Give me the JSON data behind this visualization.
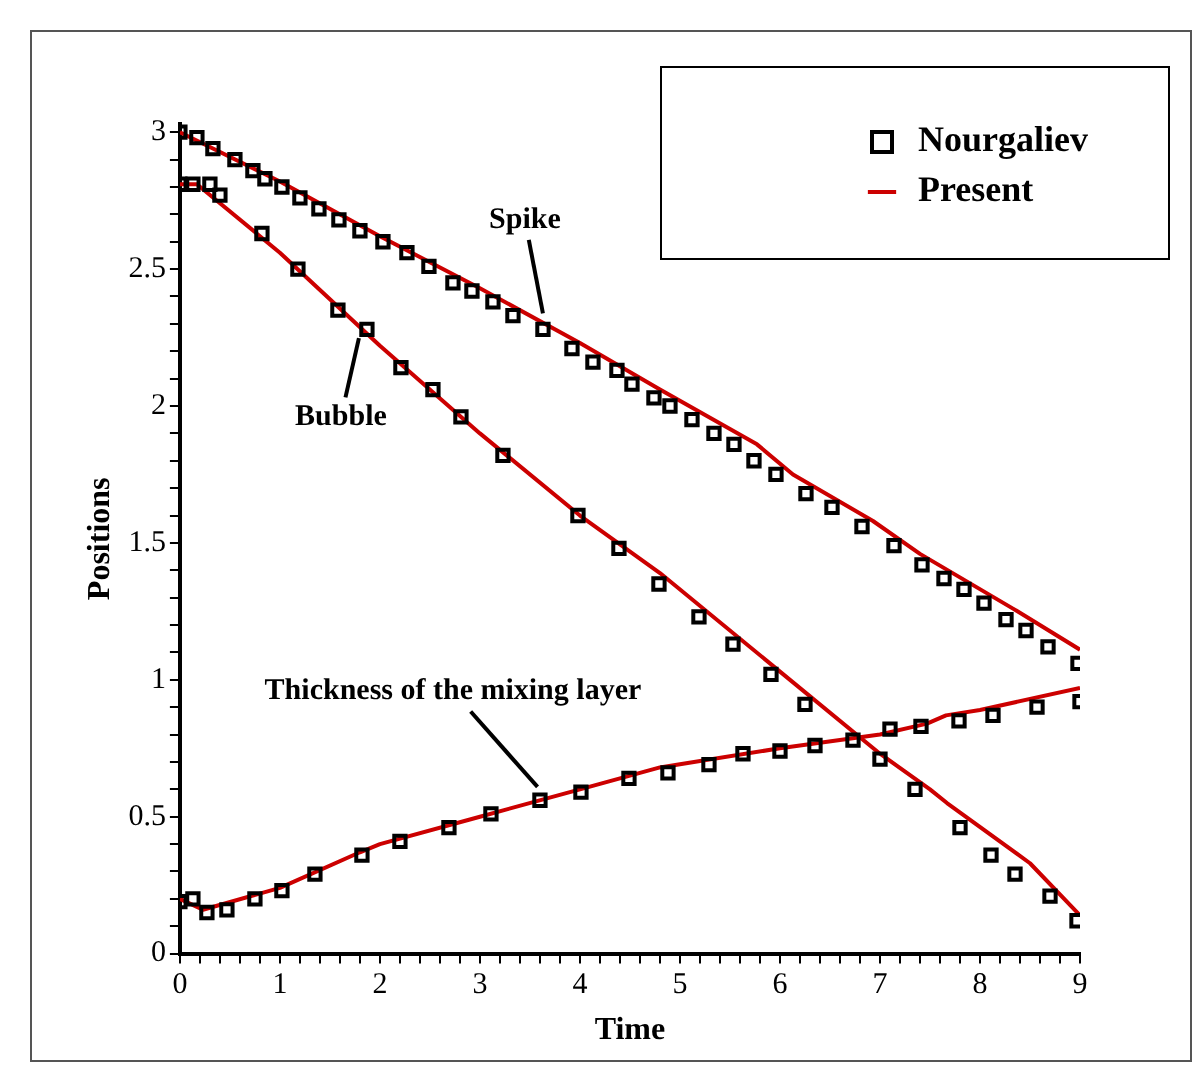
{
  "chart_data": {
    "type": "line",
    "xlabel": "Time",
    "ylabel": "Positions",
    "xlim": [
      0,
      9
    ],
    "ylim": [
      0,
      3.03
    ],
    "xticks": [
      0,
      {
        "value": 0.2,
        "label": null
      },
      {
        "value": 0.4,
        "label": null
      },
      {
        "value": 0.6,
        "label": null
      },
      {
        "value": 0.8,
        "label": null
      },
      1,
      {
        "value": 1.2,
        "label": null
      },
      {
        "value": 1.4,
        "label": null
      },
      {
        "value": 1.6,
        "label": null
      },
      {
        "value": 1.8,
        "label": null
      },
      2,
      {
        "value": 2.2,
        "label": null
      },
      {
        "value": 2.4,
        "label": null
      },
      {
        "value": 2.6,
        "label": null
      },
      {
        "value": 2.8,
        "label": null
      },
      3,
      {
        "value": 3.2,
        "label": null
      },
      {
        "value": 3.4,
        "label": null
      },
      {
        "value": 3.6,
        "label": null
      },
      {
        "value": 3.8,
        "label": null
      },
      4,
      {
        "value": 4.2,
        "label": null
      },
      {
        "value": 4.4,
        "label": null
      },
      {
        "value": 4.6,
        "label": null
      },
      {
        "value": 4.8,
        "label": null
      },
      5,
      {
        "value": 5.2,
        "label": null
      },
      {
        "value": 5.4,
        "label": null
      },
      {
        "value": 5.6,
        "label": null
      },
      {
        "value": 5.8,
        "label": null
      },
      6,
      {
        "value": 6.2,
        "label": null
      },
      {
        "value": 6.4,
        "label": null
      },
      {
        "value": 6.6,
        "label": null
      },
      {
        "value": 6.8,
        "label": null
      },
      7,
      {
        "value": 7.2,
        "label": null
      },
      {
        "value": 7.4,
        "label": null
      },
      {
        "value": 7.6,
        "label": null
      },
      {
        "value": 7.8,
        "label": null
      },
      8,
      {
        "value": 8.2,
        "label": null
      },
      {
        "value": 8.4,
        "label": null
      },
      {
        "value": 8.6,
        "label": null
      },
      {
        "value": 8.8,
        "label": null
      },
      9
    ],
    "yticks": [
      0,
      {
        "value": 0.1,
        "label": null
      },
      {
        "value": 0.2,
        "label": null
      },
      {
        "value": 0.3,
        "label": null
      },
      {
        "value": 0.4,
        "label": null
      },
      0.5,
      {
        "value": 0.6,
        "label": null
      },
      {
        "value": 0.7,
        "label": null
      },
      {
        "value": 0.8,
        "label": null
      },
      {
        "value": 0.9,
        "label": null
      },
      1,
      {
        "value": 1.1,
        "label": null
      },
      {
        "value": 1.2,
        "label": null
      },
      {
        "value": 1.3,
        "label": null
      },
      {
        "value": 1.4,
        "label": null
      },
      1.5,
      {
        "value": 1.6,
        "label": null
      },
      {
        "value": 1.7,
        "label": null
      },
      {
        "value": 1.8,
        "label": null
      },
      {
        "value": 1.9,
        "label": null
      },
      2,
      {
        "value": 2.1,
        "label": null
      },
      {
        "value": 2.2,
        "label": null
      },
      {
        "value": 2.3,
        "label": null
      },
      {
        "value": 2.4,
        "label": null
      },
      2.5,
      {
        "value": 2.6,
        "label": null
      },
      {
        "value": 2.7,
        "label": null
      },
      {
        "value": 2.8,
        "label": null
      },
      {
        "value": 2.9,
        "label": null
      },
      3
    ],
    "grid": false,
    "legend": "top right",
    "annotations": [
      {
        "text": "Spike",
        "x": 3.65,
        "y": 2.3
      },
      {
        "text": "Bubble",
        "x": 1.81,
        "y": 2.28
      },
      {
        "text": "Thickness of the mixing layer",
        "x": 3.67,
        "y": 0.57
      }
    ],
    "series": [
      {
        "name": "Nourgaliev",
        "type": "scatter",
        "marker": "square",
        "color": "#000000",
        "x": [
          0,
          0.17,
          0.33,
          0.55,
          0.73,
          0.85,
          1.02,
          1.2,
          1.39,
          1.59,
          1.8,
          2.03,
          2.27,
          2.49,
          2.73,
          2.92,
          3.13,
          3.33,
          3.63,
          3.92,
          4.13,
          4.37,
          4.52,
          4.74,
          4.9,
          5.12,
          5.34,
          5.54,
          5.74,
          5.96,
          6.26,
          6.52,
          6.82,
          7.14,
          7.42,
          7.64,
          7.84,
          8.04,
          8.26,
          8.46,
          8.68,
          8.98,
          0,
          0.13,
          0.3,
          0.4,
          0.82,
          1.18,
          1.58,
          1.87,
          2.21,
          2.53,
          2.81,
          3.23,
          3.98,
          4.39,
          4.79,
          5.19,
          5.53,
          5.91,
          6.25,
          7.0,
          7.35,
          7.8,
          8.11,
          8.35,
          8.7,
          8.97,
          0,
          0.13,
          0.27,
          0.47,
          0.75,
          1.02,
          1.35,
          1.82,
          2.2,
          2.69,
          3.11,
          3.6,
          4.01,
          4.49,
          4.88,
          5.29,
          5.63,
          6.0,
          6.35,
          6.73,
          7.1,
          7.41,
          7.79,
          8.13,
          8.57,
          9.0
        ],
        "values": [
          3.0,
          2.98,
          2.94,
          2.9,
          2.86,
          2.83,
          2.8,
          2.76,
          2.72,
          2.68,
          2.64,
          2.6,
          2.56,
          2.51,
          2.45,
          2.42,
          2.38,
          2.33,
          2.28,
          2.21,
          2.16,
          2.13,
          2.08,
          2.03,
          2.0,
          1.95,
          1.9,
          1.86,
          1.8,
          1.75,
          1.68,
          1.63,
          1.56,
          1.49,
          1.42,
          1.37,
          1.33,
          1.28,
          1.22,
          1.18,
          1.12,
          1.06,
          2.81,
          2.81,
          2.81,
          2.77,
          2.63,
          2.5,
          2.35,
          2.28,
          2.14,
          2.06,
          1.96,
          1.82,
          1.6,
          1.48,
          1.35,
          1.23,
          1.13,
          1.02,
          0.91,
          0.71,
          0.6,
          0.46,
          0.36,
          0.29,
          0.21,
          0.12,
          0.19,
          0.2,
          0.15,
          0.16,
          0.2,
          0.23,
          0.29,
          0.36,
          0.41,
          0.46,
          0.51,
          0.56,
          0.59,
          0.64,
          0.66,
          0.69,
          0.73,
          0.74,
          0.76,
          0.78,
          0.82,
          0.83,
          0.85,
          0.87,
          0.9,
          0.92
        ]
      },
      {
        "name": "Present",
        "line_style": "solid",
        "color": "#cc0000",
        "x": [
          0,
          1,
          2,
          3,
          4,
          4.8,
          5.77,
          6.13,
          6.93,
          7.4,
          8.33,
          9
        ],
        "values": [
          3.0,
          2.82,
          2.62,
          2.43,
          2.23,
          2.06,
          1.86,
          1.75,
          1.58,
          1.46,
          1.26,
          1.11
        ]
      },
      {
        "line_style": "solid",
        "color": "#cc0000",
        "x": [
          0,
          0.17,
          1,
          2,
          3,
          4,
          4.8,
          6,
          7,
          7.5,
          7.67,
          8.5,
          9
        ],
        "values": [
          2.81,
          2.81,
          2.56,
          2.22,
          1.9,
          1.6,
          1.39,
          1.03,
          0.73,
          0.6,
          0.55,
          0.33,
          0.14
        ]
      },
      {
        "line_style": "solid",
        "color": "#cc0000",
        "x": [
          0,
          0.23,
          1,
          1.8,
          2,
          3,
          4,
          4.8,
          6,
          7,
          7.47,
          7.66,
          8,
          9
        ],
        "values": [
          0.2,
          0.16,
          0.24,
          0.37,
          0.4,
          0.5,
          0.6,
          0.68,
          0.75,
          0.8,
          0.84,
          0.87,
          0.89,
          0.97
        ]
      }
    ]
  }
}
